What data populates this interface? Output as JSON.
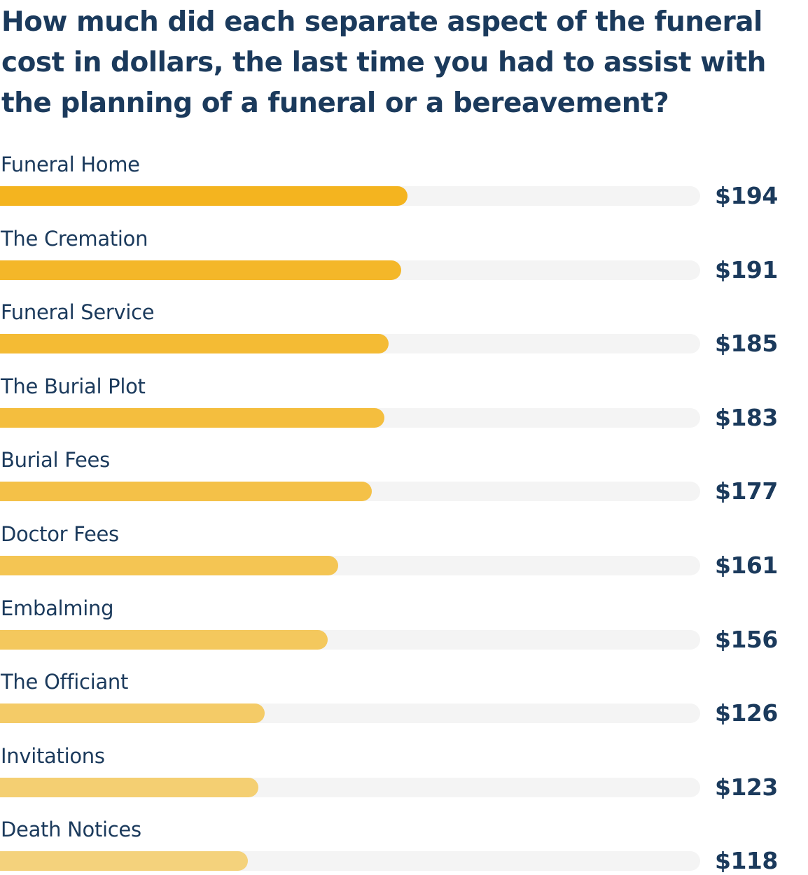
{
  "chart_data": {
    "type": "bar",
    "orientation": "horizontal",
    "title": "How much did each separate aspect of the funeral cost in dollars, the last time you had to assist with the planning of a funeral or a bereavement?",
    "categories": [
      "Funeral Home",
      "The Cremation",
      "Funeral Service",
      "The Burial Plot",
      "Burial Fees",
      "Doctor Fees",
      "Embalming",
      "The Officiant",
      "Invitations",
      "Death Notices"
    ],
    "values": [
      194,
      191,
      185,
      183,
      177,
      161,
      156,
      126,
      123,
      118
    ],
    "value_labels": [
      "$194",
      "$191",
      "$185",
      "$183",
      "$177",
      "$161",
      "$156",
      "$126",
      "$123",
      "$118"
    ],
    "xlim": [
      0,
      333.3
    ],
    "grid": false,
    "legend": "none",
    "colors": {
      "bar_start": "#f4b41f",
      "bar_end": "#f4d27c",
      "track": "#f4f4f4",
      "text": "#1b3a5c"
    }
  }
}
